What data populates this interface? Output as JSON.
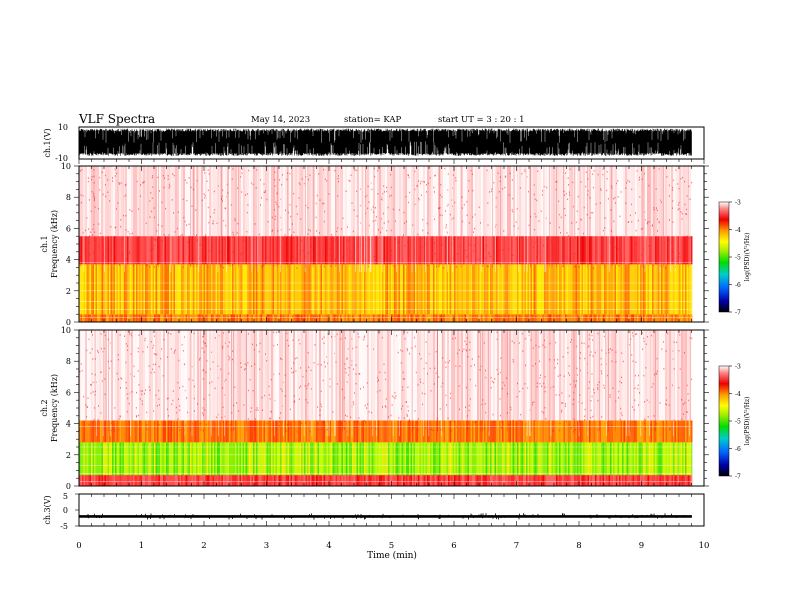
{
  "header": {
    "title": "VLF Spectra",
    "date": "May 14, 2023",
    "station": "station= KAP",
    "start_ut": "start  UT =   3  : 20 : 1"
  },
  "chart_data": [
    {
      "id": "ch1-waveform",
      "type": "line",
      "ylabel": "ch.1(V)",
      "ylim": [
        -10,
        10
      ],
      "yticks": [
        "10",
        "-10"
      ],
      "xlim": [
        0,
        10
      ],
      "description_series": "dense oscillating voltage signal, mostly near full scale",
      "approx_envelope": [
        -8,
        9
      ]
    },
    {
      "id": "ch1-spectrogram",
      "type": "heatmap",
      "ylabel_line1": "ch.1",
      "ylabel_line2": "Frequency (kHz)",
      "ylim": [
        0,
        10
      ],
      "yticks": [
        "0",
        "2",
        "4",
        "6",
        "8",
        "10"
      ],
      "xlim": [
        0,
        9.8
      ],
      "bands_khz": [
        {
          "from": 0,
          "to": 0.5,
          "level": "orange"
        },
        {
          "from": 0.5,
          "to": 3.7,
          "level": "yellow-orange"
        },
        {
          "from": 3.7,
          "to": 5.5,
          "level": "red"
        },
        {
          "from": 5.5,
          "to": 10,
          "level": "pink"
        }
      ],
      "colorbar": {
        "label": "log(PSD)(V²/Hz)",
        "ticks": [
          "-3",
          "-4",
          "-5",
          "-6",
          "-7"
        ],
        "range": [
          -7,
          -3
        ]
      }
    },
    {
      "id": "ch2-spectrogram",
      "type": "heatmap",
      "ylabel_line1": "ch.2",
      "ylabel_line2": "Frequency (kHz)",
      "ylim": [
        0,
        10
      ],
      "yticks": [
        "0",
        "2",
        "4",
        "6",
        "8",
        "10"
      ],
      "xlim": [
        0,
        9.8
      ],
      "bands_khz": [
        {
          "from": 0,
          "to": 0.7,
          "level": "red"
        },
        {
          "from": 0.7,
          "to": 2.8,
          "level": "green-yellow"
        },
        {
          "from": 2.8,
          "to": 4.2,
          "level": "orange"
        },
        {
          "from": 4.2,
          "to": 10,
          "level": "pink"
        }
      ],
      "colorbar": {
        "label": "log(PSD)(V²/Hz)",
        "ticks": [
          "-3",
          "-4",
          "-5",
          "-6",
          "-7"
        ],
        "range": [
          -7,
          -3
        ]
      }
    },
    {
      "id": "ch3-waveform",
      "type": "line",
      "ylabel": "ch.3(V)",
      "ylim": [
        -5,
        5
      ],
      "yticks": [
        "5",
        "0",
        "-5"
      ],
      "xlim": [
        0,
        10
      ],
      "approx_envelope": [
        -2.4,
        -1.6
      ],
      "xlabel": "Time (min)",
      "xticks": [
        "0",
        "1",
        "2",
        "3",
        "4",
        "5",
        "6",
        "7",
        "8",
        "9",
        "10"
      ]
    }
  ],
  "colors": {
    "axis": "#000000",
    "spectrogram_bg": "#ffffff"
  }
}
